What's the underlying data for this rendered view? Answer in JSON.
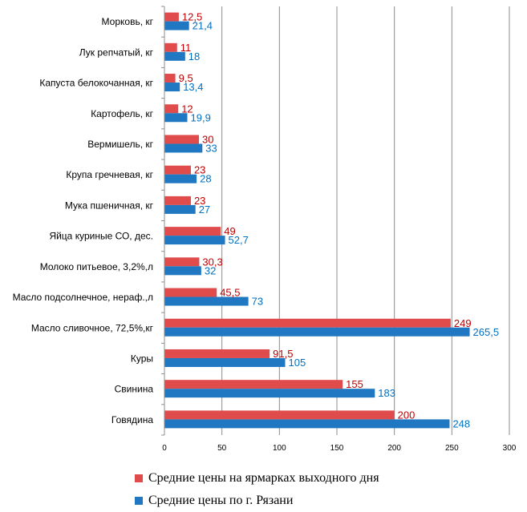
{
  "chart_data": {
    "type": "bar",
    "orientation": "horizontal",
    "categories": [
      "Морковь,  кг",
      "Лук репчатый,  кг",
      "Капуста  белокочанная,  кг",
      "Картофель,  кг",
      "Вермишель,  кг",
      "Крупа  гречневая,  кг",
      "Мука  пшеничная,  кг",
      "Яйца куриные  СО, дес.",
      "Молоко  питьевое,  3,2%,л",
      "Масло подсолнечное,  нераф.,л",
      "Масло сливочное,  72,5%,кг",
      "Куры",
      "Свинина",
      "Говядина"
    ],
    "series": [
      {
        "name": "Средние цены на ярмарках выходного дня",
        "color": "#e04b4b",
        "label_color": "#c00000",
        "values": [
          12.5,
          11,
          9.5,
          12,
          30,
          23,
          23,
          49,
          30.3,
          45.5,
          249,
          91.5,
          155,
          200
        ],
        "labels": [
          "12,5",
          "11",
          "9,5",
          "12",
          "30",
          "23",
          "23",
          "49",
          "30,3",
          "45,5",
          "249",
          "91,5",
          "155",
          "200"
        ]
      },
      {
        "name": "Средние цены по г. Рязани",
        "color": "#1f78c1",
        "label_color": "#0070c0",
        "values": [
          21.4,
          18,
          13.4,
          19.9,
          33,
          28,
          27,
          52.7,
          32,
          73,
          265.5,
          105,
          183,
          248
        ],
        "labels": [
          "21,4",
          "18",
          "13,4",
          "19,9",
          "33",
          "28",
          "27",
          "52,7",
          "32",
          "73",
          "265,5",
          "105",
          "183",
          "248"
        ]
      }
    ],
    "x_ticks": [
      "0",
      "50",
      "100",
      "150",
      "200",
      "250",
      "300"
    ],
    "xlim": [
      0,
      300
    ],
    "grid": true,
    "legend_position": "bottom"
  }
}
